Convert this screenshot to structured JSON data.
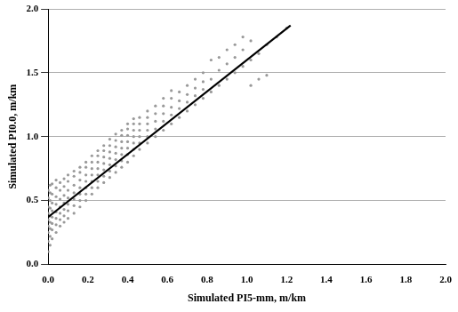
{
  "chart_data": {
    "type": "scatter",
    "x_label": "Simulated PI5-mm, m/km",
    "y_label": "Simulated PI0.0, m/km",
    "xlim": [
      0,
      2
    ],
    "ylim": [
      0,
      2
    ],
    "xticks": [
      {
        "value": 0,
        "label": "0.0"
      },
      {
        "value": 0.2,
        "label": "0.2"
      },
      {
        "value": 0.4,
        "label": "0.4"
      },
      {
        "value": 0.6,
        "label": "0.6"
      },
      {
        "value": 0.8,
        "label": "0.8"
      },
      {
        "value": 1,
        "label": "1.0"
      },
      {
        "value": 1.2,
        "label": "1.2"
      },
      {
        "value": 1.4,
        "label": "1.4"
      },
      {
        "value": 1.6,
        "label": "1.6"
      },
      {
        "value": 1.8,
        "label": "1.8"
      },
      {
        "value": 2,
        "label": "2.0"
      }
    ],
    "yticks": [
      {
        "value": 0,
        "label": "0.0"
      },
      {
        "value": 0.5,
        "label": "0.5"
      },
      {
        "value": 1,
        "label": "1.0"
      },
      {
        "value": 1.5,
        "label": "1.5"
      },
      {
        "value": 2,
        "label": "2.0"
      }
    ],
    "grid": "y",
    "series": [
      {
        "type": "scatter",
        "color": "#999999",
        "marker": "circle",
        "x": [
          0,
          0,
          0,
          0,
          0,
          0,
          0,
          0,
          0,
          0.01,
          0.01,
          0.01,
          0.01,
          0.01,
          0.01,
          0.01,
          0.01,
          0.01,
          0.02,
          0.02,
          0.02,
          0.02,
          0.02,
          0.02,
          0.02,
          0.02,
          0.04,
          0.04,
          0.04,
          0.04,
          0.04,
          0.04,
          0.04,
          0.04,
          0.06,
          0.06,
          0.06,
          0.06,
          0.06,
          0.06,
          0.06,
          0.08,
          0.08,
          0.08,
          0.08,
          0.08,
          0.08,
          0.08,
          0.1,
          0.1,
          0.1,
          0.1,
          0.1,
          0.1,
          0.1,
          0.13,
          0.13,
          0.13,
          0.13,
          0.13,
          0.13,
          0.13,
          0.16,
          0.16,
          0.16,
          0.16,
          0.16,
          0.16,
          0.16,
          0.19,
          0.19,
          0.19,
          0.19,
          0.19,
          0.19,
          0.19,
          0.22,
          0.22,
          0.22,
          0.22,
          0.22,
          0.22,
          0.22,
          0.25,
          0.25,
          0.25,
          0.25,
          0.25,
          0.25,
          0.25,
          0.28,
          0.28,
          0.28,
          0.28,
          0.28,
          0.28,
          0.28,
          0.31,
          0.31,
          0.31,
          0.31,
          0.31,
          0.31,
          0.31,
          0.34,
          0.34,
          0.34,
          0.34,
          0.34,
          0.34,
          0.34,
          0.37,
          0.37,
          0.37,
          0.37,
          0.37,
          0.37,
          0.37,
          0.4,
          0.4,
          0.4,
          0.4,
          0.4,
          0.4,
          0.4,
          0.43,
          0.43,
          0.43,
          0.43,
          0.43,
          0.43,
          0.43,
          0.46,
          0.46,
          0.46,
          0.46,
          0.46,
          0.46,
          0.5,
          0.5,
          0.5,
          0.5,
          0.5,
          0.5,
          0.54,
          0.54,
          0.54,
          0.54,
          0.54,
          0.58,
          0.58,
          0.58,
          0.58,
          0.58,
          0.62,
          0.62,
          0.62,
          0.62,
          0.62,
          0.66,
          0.66,
          0.66,
          0.66,
          0.7,
          0.7,
          0.7,
          0.7,
          0.74,
          0.74,
          0.74,
          0.74,
          0.78,
          0.78,
          0.78,
          0.78,
          0.82,
          0.82,
          0.82,
          0.86,
          0.86,
          0.86,
          0.9,
          0.9,
          0.9,
          0.94,
          0.94,
          0.94,
          0.98,
          0.98,
          0.98,
          1.02,
          1.02,
          1.02,
          1.06,
          1.06,
          1.1,
          1.1,
          1.15,
          1.2
        ],
        "values": [
          0.1,
          0.18,
          0.25,
          0.3,
          0.35,
          0.4,
          0.45,
          0.52,
          0.58,
          0.15,
          0.22,
          0.28,
          0.33,
          0.38,
          0.44,
          0.5,
          0.56,
          0.62,
          0.2,
          0.27,
          0.32,
          0.37,
          0.42,
          0.48,
          0.55,
          0.63,
          0.25,
          0.31,
          0.36,
          0.41,
          0.47,
          0.53,
          0.6,
          0.66,
          0.3,
          0.35,
          0.4,
          0.45,
          0.51,
          0.58,
          0.64,
          0.33,
          0.38,
          0.43,
          0.48,
          0.54,
          0.61,
          0.67,
          0.36,
          0.42,
          0.47,
          0.52,
          0.58,
          0.65,
          0.7,
          0.4,
          0.46,
          0.51,
          0.56,
          0.62,
          0.69,
          0.73,
          0.45,
          0.5,
          0.55,
          0.6,
          0.66,
          0.72,
          0.76,
          0.5,
          0.55,
          0.6,
          0.65,
          0.7,
          0.76,
          0.8,
          0.55,
          0.6,
          0.65,
          0.7,
          0.75,
          0.8,
          0.85,
          0.6,
          0.65,
          0.7,
          0.75,
          0.8,
          0.85,
          0.89,
          0.64,
          0.69,
          0.74,
          0.79,
          0.84,
          0.89,
          0.93,
          0.68,
          0.73,
          0.78,
          0.83,
          0.88,
          0.93,
          0.98,
          0.72,
          0.77,
          0.82,
          0.87,
          0.92,
          0.97,
          1.02,
          0.76,
          0.81,
          0.86,
          0.91,
          0.96,
          1.01,
          1.05,
          0.8,
          0.86,
          0.91,
          0.96,
          1.01,
          1.06,
          1.1,
          0.85,
          0.9,
          0.95,
          1.0,
          1.05,
          1.1,
          1.14,
          0.9,
          0.95,
          1.0,
          1.05,
          1.1,
          1.15,
          0.95,
          1.0,
          1.05,
          1.1,
          1.15,
          1.2,
          1.0,
          1.06,
          1.12,
          1.18,
          1.24,
          1.05,
          1.12,
          1.18,
          1.24,
          1.3,
          1.1,
          1.17,
          1.23,
          1.3,
          1.36,
          1.15,
          1.22,
          1.28,
          1.35,
          1.2,
          1.27,
          1.33,
          1.4,
          1.25,
          1.32,
          1.38,
          1.45,
          1.3,
          1.37,
          1.43,
          1.5,
          1.35,
          1.45,
          1.6,
          1.4,
          1.52,
          1.62,
          1.45,
          1.57,
          1.68,
          1.5,
          1.62,
          1.72,
          1.55,
          1.68,
          1.78,
          1.4,
          1.6,
          1.75,
          1.45,
          1.65,
          1.48,
          1.72,
          1.78,
          1.85
        ]
      },
      {
        "type": "line",
        "color": "#000000",
        "line_style": "solid",
        "x": [
          0,
          1.22
        ],
        "values": [
          0.37,
          1.87
        ]
      }
    ]
  }
}
